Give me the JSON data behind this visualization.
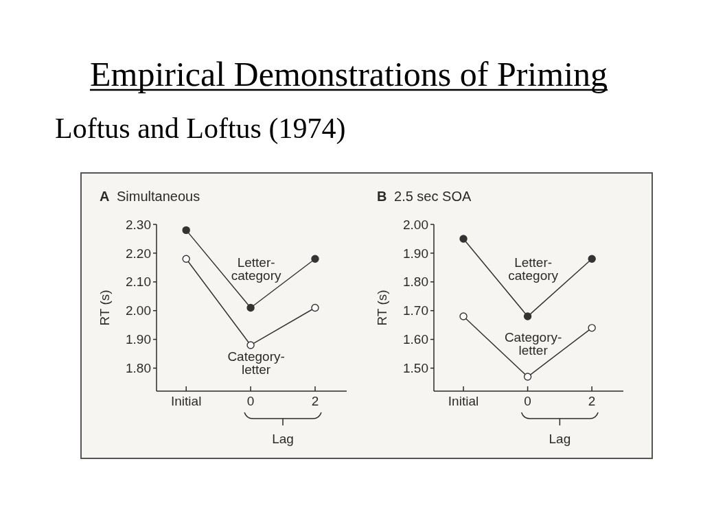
{
  "chart_data": [
    {
      "type": "other",
      "title": "Empirical Demonstrations of Priming",
      "subtitle": "Loftus and Loftus (1974)"
    },
    {
      "type": "line",
      "title": "A Simultaneous",
      "xlabel": "Lag",
      "ylabel": "RT (s)",
      "categories": [
        "Initial",
        "0",
        "2"
      ],
      "series": [
        {
          "name": "Letter-category",
          "color": "#333333",
          "values": [
            2.28,
            2.01,
            2.18
          ]
        },
        {
          "name": "Category-letter",
          "color": "#333333",
          "colors": [
            "#ffffff",
            "#ffffff",
            "#ffffff"
          ],
          "values": [
            2.18,
            1.88,
            2.01
          ]
        }
      ],
      "ylim": [
        1.72,
        2.3
      ],
      "yticks": [
        {
          "value": 1.8,
          "label": "1.80"
        },
        {
          "value": 1.9,
          "label": "1.90"
        },
        {
          "value": 2.0,
          "label": "2.00"
        },
        {
          "value": 2.1,
          "label": "2.10"
        },
        {
          "value": 2.2,
          "label": "2.20"
        },
        {
          "value": 2.3,
          "label": "2.30"
        }
      ],
      "marker": "circle"
    },
    {
      "type": "line",
      "title": "B 2.5 sec SOA",
      "xlabel": "Lag",
      "ylabel": "RT (s)",
      "categories": [
        "Initial",
        "0",
        "2"
      ],
      "series": [
        {
          "name": "Letter-category",
          "color": "#333333",
          "values": [
            1.95,
            1.68,
            1.88
          ]
        },
        {
          "name": "Category-letter",
          "color": "#333333",
          "colors": [
            "#ffffff",
            "#ffffff",
            "#ffffff"
          ],
          "values": [
            1.68,
            1.47,
            1.64
          ]
        }
      ],
      "ylim": [
        1.42,
        2.0
      ],
      "yticks": [
        {
          "value": 1.5,
          "label": "1.50"
        },
        {
          "value": 1.6,
          "label": "1.60"
        },
        {
          "value": 1.7,
          "label": "1.70"
        },
        {
          "value": 1.8,
          "label": "1.80"
        },
        {
          "value": 1.9,
          "label": "1.90"
        },
        {
          "value": 2.0,
          "label": "2.00"
        }
      ],
      "marker": "circle"
    }
  ]
}
